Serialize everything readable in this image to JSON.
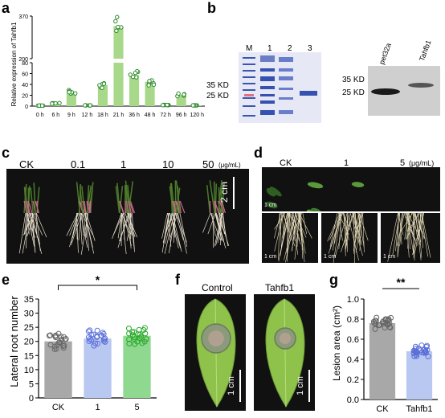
{
  "panels": {
    "a": {
      "label": "a"
    },
    "b": {
      "label": "b"
    },
    "c": {
      "label": "c"
    },
    "d": {
      "label": "d"
    },
    "e": {
      "label": "e"
    },
    "f": {
      "label": "f"
    },
    "g": {
      "label": "g"
    }
  },
  "panel_b": {
    "gel_lanes": [
      "M",
      "1",
      "2",
      "3"
    ],
    "gel_markers": [
      "35 KD",
      "25 KD"
    ],
    "blot_lanes": [
      "pet32a",
      "Tahfb1"
    ],
    "blot_markers": [
      "35 KD",
      "25 KD"
    ]
  },
  "panel_c": {
    "treatments": [
      "CK",
      "0.1",
      "1",
      "10",
      "50"
    ],
    "unit": "(μg/mL)",
    "scale": "2 cm"
  },
  "panel_d": {
    "treatments": [
      "CK",
      "1",
      "5"
    ],
    "unit": "(μg/mL)",
    "scale": "1 cm"
  },
  "panel_f": {
    "conditions": [
      "Control",
      "Tahfb1"
    ],
    "scale": "1 cm"
  },
  "chart_data": [
    {
      "id": "a",
      "type": "bar",
      "ylabel": "Relative expression of Tahfb1",
      "categories": [
        "0 h",
        "6 h",
        "9 h",
        "12 h",
        "18 h",
        "21 h",
        "36 h",
        "48 h",
        "72 h",
        "96 h",
        "120 h"
      ],
      "values": [
        1,
        5,
        26,
        1.5,
        39,
        330,
        57,
        45,
        2,
        21,
        1.5
      ],
      "y_ticks_lower": [
        "0",
        "20",
        "40",
        "60",
        "80"
      ],
      "y_ticks_upper": [
        "200",
        "370"
      ],
      "y_axis_break": [
        80,
        200
      ],
      "ylim": [
        0,
        370
      ]
    },
    {
      "id": "e",
      "type": "bar",
      "ylabel": "Lateral root number",
      "categories": [
        "CK",
        "1",
        "5"
      ],
      "values": [
        20,
        21,
        22
      ],
      "ylim": [
        0,
        35
      ],
      "y_ticks": [
        "0",
        "5",
        "10",
        "15",
        "20",
        "25",
        "30",
        "35"
      ],
      "significance": "*",
      "colors": [
        "#a8a8a8",
        "#b8c8f0",
        "#8fd88f"
      ]
    },
    {
      "id": "g",
      "type": "bar",
      "ylabel": "Lesion area (cm²)",
      "categories": [
        "CK",
        "Tahfb1"
      ],
      "values": [
        0.76,
        0.48
      ],
      "ylim": [
        0,
        1.0
      ],
      "y_ticks": [
        "0.0",
        "0.2",
        "0.4",
        "0.6",
        "0.8",
        "1.0"
      ],
      "significance": "**",
      "colors": [
        "#a8a8a8",
        "#b8c8f0"
      ]
    }
  ]
}
